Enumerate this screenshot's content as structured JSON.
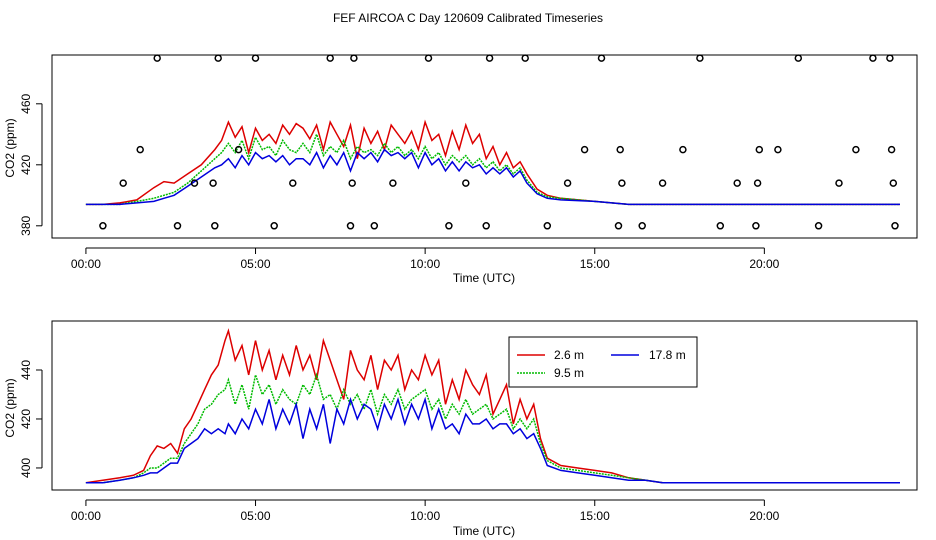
{
  "title": "FEF AIRCOA C  Day 120609  Calibrated Timeseries",
  "colors": {
    "s26": "#dd0000",
    "s95": "#00bb00",
    "s178": "#0000dd",
    "axis": "#000000"
  },
  "chart_data": [
    {
      "type": "line",
      "name": "top",
      "xlabel": "Time (UTC)",
      "ylabel": "CO2 (ppm)",
      "xlim": [
        -1,
        24.5
      ],
      "ylim": [
        372,
        492
      ],
      "xticks": [
        0,
        5,
        10,
        15,
        20
      ],
      "xtick_labels": [
        "00:00",
        "05:00",
        "10:00",
        "15:00",
        "20:00"
      ],
      "yticks": [
        380,
        420,
        460
      ],
      "ytick_labels": [
        "380",
        "420",
        "460"
      ],
      "series": [
        {
          "name": "2.6 m",
          "color": "#dd0000",
          "x": [
            0,
            0.5,
            1,
            1.5,
            2,
            2.3,
            2.6,
            3,
            3.4,
            3.8,
            4,
            4.2,
            4.4,
            4.6,
            4.8,
            5,
            5.2,
            5.4,
            5.6,
            5.8,
            6,
            6.2,
            6.4,
            6.6,
            6.8,
            7,
            7.2,
            7.4,
            7.6,
            7.8,
            8,
            8.2,
            8.4,
            8.6,
            8.8,
            9,
            9.2,
            9.4,
            9.6,
            9.8,
            10,
            10.2,
            10.4,
            10.6,
            10.8,
            11,
            11.2,
            11.4,
            11.6,
            11.8,
            12,
            12.2,
            12.4,
            12.6,
            12.8,
            13,
            13.3,
            13.6,
            14,
            15,
            16,
            17,
            18,
            19,
            20,
            21,
            22,
            23,
            24
          ],
          "y": [
            394,
            394,
            395,
            397,
            405,
            409,
            408,
            414,
            420,
            430,
            436,
            448,
            438,
            445,
            428,
            444,
            436,
            440,
            434,
            446,
            440,
            447,
            444,
            437,
            446,
            430,
            448,
            440,
            432,
            446,
            424,
            444,
            434,
            442,
            430,
            446,
            440,
            434,
            442,
            430,
            448,
            436,
            440,
            426,
            442,
            430,
            446,
            434,
            440,
            424,
            432,
            420,
            428,
            418,
            422,
            414,
            404,
            400,
            398,
            396,
            394,
            394,
            394,
            394,
            394,
            394,
            394,
            394,
            394
          ]
        },
        {
          "name": "9.5 m",
          "color": "#00bb00",
          "x": [
            0,
            0.5,
            1,
            1.5,
            2,
            2.3,
            2.6,
            3,
            3.4,
            3.8,
            4,
            4.2,
            4.4,
            4.6,
            4.8,
            5,
            5.2,
            5.4,
            5.6,
            5.8,
            6,
            6.2,
            6.4,
            6.6,
            6.8,
            7,
            7.2,
            7.4,
            7.6,
            7.8,
            8,
            8.2,
            8.4,
            8.6,
            8.8,
            9,
            9.2,
            9.4,
            9.6,
            9.8,
            10,
            10.2,
            10.4,
            10.6,
            10.8,
            11,
            11.2,
            11.4,
            11.6,
            11.8,
            12,
            12.2,
            12.4,
            12.6,
            12.8,
            13,
            13.3,
            13.6,
            14,
            15,
            16,
            17,
            18,
            19,
            20,
            21,
            22,
            23,
            24
          ],
          "y": [
            394,
            394,
            394,
            396,
            398,
            400,
            402,
            408,
            416,
            424,
            428,
            434,
            428,
            436,
            424,
            438,
            430,
            432,
            426,
            436,
            430,
            428,
            434,
            428,
            440,
            426,
            432,
            428,
            436,
            424,
            432,
            428,
            430,
            426,
            434,
            428,
            432,
            426,
            430,
            424,
            432,
            424,
            428,
            420,
            426,
            422,
            426,
            420,
            424,
            418,
            422,
            416,
            420,
            414,
            418,
            410,
            402,
            399,
            398,
            396,
            394,
            394,
            394,
            394,
            394,
            394,
            394,
            394,
            394
          ]
        },
        {
          "name": "17.8 m",
          "color": "#0000dd",
          "x": [
            0,
            0.5,
            1,
            1.5,
            2,
            2.3,
            2.6,
            3,
            3.4,
            3.8,
            4,
            4.2,
            4.4,
            4.6,
            4.8,
            5,
            5.2,
            5.4,
            5.6,
            5.8,
            6,
            6.2,
            6.4,
            6.6,
            6.8,
            7,
            7.2,
            7.4,
            7.6,
            7.8,
            8,
            8.2,
            8.4,
            8.6,
            8.8,
            9,
            9.2,
            9.4,
            9.6,
            9.8,
            10,
            10.2,
            10.4,
            10.6,
            10.8,
            11,
            11.2,
            11.4,
            11.6,
            11.8,
            12,
            12.2,
            12.4,
            12.6,
            12.8,
            13,
            13.3,
            13.6,
            14,
            15,
            16,
            17,
            18,
            19,
            20,
            21,
            22,
            23,
            24
          ],
          "y": [
            394,
            394,
            394,
            395,
            396,
            398,
            400,
            406,
            412,
            418,
            420,
            424,
            418,
            426,
            420,
            428,
            424,
            426,
            422,
            426,
            420,
            424,
            424,
            420,
            428,
            418,
            426,
            420,
            428,
            416,
            428,
            424,
            428,
            422,
            430,
            426,
            428,
            424,
            428,
            418,
            428,
            420,
            424,
            416,
            422,
            416,
            422,
            418,
            420,
            414,
            418,
            414,
            418,
            412,
            416,
            408,
            401,
            398,
            397,
            396,
            394,
            394,
            394,
            394,
            394,
            394,
            394,
            394,
            394
          ]
        }
      ],
      "reference_points": {
        "x": [
          0.5,
          1.1,
          1.6,
          2.1,
          2.7,
          3.2,
          3.75,
          3.8,
          3.9,
          4.5,
          5.0,
          5.55,
          6.1,
          7.2,
          7.8,
          7.85,
          7.9,
          8.5,
          9.05,
          10.1,
          10.7,
          11.2,
          11.8,
          11.9,
          12.95,
          13.6,
          14.2,
          14.7,
          15.2,
          15.7,
          15.75,
          15.8,
          16.4,
          17.0,
          17.6,
          18.1,
          18.7,
          19.2,
          19.75,
          19.8,
          19.85,
          20.4,
          21.0,
          21.6,
          22.2,
          22.7,
          23.2,
          23.7,
          23.75,
          23.8,
          23.85
        ],
        "y": [
          380,
          408,
          430,
          490,
          380,
          408,
          408,
          380,
          490,
          430,
          490,
          380,
          408,
          490,
          380,
          408,
          490,
          380,
          408,
          490,
          380,
          408,
          380,
          490,
          490,
          380,
          408,
          430,
          490,
          380,
          430,
          408,
          380,
          408,
          430,
          490,
          380,
          408,
          380,
          408,
          430,
          430,
          490,
          380,
          408,
          430,
          490,
          490,
          430,
          408,
          380
        ]
      }
    },
    {
      "type": "line",
      "name": "bottom",
      "xlabel": "Time (UTC)",
      "ylabel": "CO2 (ppm)",
      "xlim": [
        -1,
        24.5
      ],
      "ylim": [
        391,
        460
      ],
      "xticks": [
        0,
        5,
        10,
        15,
        20
      ],
      "xtick_labels": [
        "00:00",
        "05:00",
        "10:00",
        "15:00",
        "20:00"
      ],
      "yticks": [
        400,
        420,
        440
      ],
      "ytick_labels": [
        "400",
        "420",
        "440"
      ],
      "legend": {
        "placement": "top-right",
        "entries": [
          "2.6 m",
          "17.8 m",
          "9.5 m"
        ]
      },
      "series": [
        {
          "name": "2.6 m",
          "color": "#dd0000",
          "x": [
            0,
            0.5,
            1,
            1.4,
            1.7,
            1.9,
            2.1,
            2.3,
            2.5,
            2.7,
            2.9,
            3.1,
            3.3,
            3.5,
            3.7,
            3.9,
            4.1,
            4.2,
            4.4,
            4.6,
            4.8,
            5.0,
            5.2,
            5.4,
            5.6,
            5.8,
            6.0,
            6.2,
            6.4,
            6.6,
            6.8,
            7.0,
            7.2,
            7.4,
            7.6,
            7.8,
            8.0,
            8.2,
            8.4,
            8.6,
            8.8,
            9.0,
            9.2,
            9.4,
            9.6,
            9.8,
            10.0,
            10.2,
            10.4,
            10.6,
            10.8,
            11.0,
            11.2,
            11.4,
            11.6,
            11.8,
            12.0,
            12.2,
            12.4,
            12.6,
            12.8,
            13.0,
            13.2,
            13.4,
            13.6,
            14.0,
            14.5,
            15.0,
            15.5,
            16.0,
            16.5,
            17.0,
            18.0,
            19.0,
            20.0,
            21.0,
            22.0,
            23.0,
            24.0
          ],
          "y": [
            394,
            395,
            396,
            397,
            399,
            405,
            409,
            408,
            410,
            406,
            416,
            420,
            426,
            432,
            438,
            442,
            452,
            456,
            444,
            450,
            438,
            452,
            440,
            448,
            436,
            446,
            438,
            450,
            440,
            446,
            436,
            452,
            444,
            436,
            428,
            448,
            440,
            436,
            446,
            432,
            444,
            440,
            446,
            432,
            440,
            436,
            446,
            438,
            444,
            426,
            436,
            428,
            440,
            434,
            430,
            438,
            422,
            428,
            434,
            418,
            428,
            420,
            426,
            412,
            404,
            401,
            400,
            399,
            398,
            396,
            395,
            394,
            394,
            394,
            394,
            394,
            394,
            394,
            394
          ]
        },
        {
          "name": "9.5 m",
          "color": "#00bb00",
          "x": [
            0,
            0.5,
            1,
            1.4,
            1.7,
            1.9,
            2.1,
            2.3,
            2.5,
            2.7,
            2.9,
            3.1,
            3.3,
            3.5,
            3.7,
            3.9,
            4.1,
            4.2,
            4.4,
            4.6,
            4.8,
            5.0,
            5.2,
            5.4,
            5.6,
            5.8,
            6.0,
            6.2,
            6.4,
            6.6,
            6.8,
            7.0,
            7.2,
            7.4,
            7.6,
            7.8,
            8.0,
            8.2,
            8.4,
            8.6,
            8.8,
            9.0,
            9.2,
            9.4,
            9.6,
            9.8,
            10.0,
            10.2,
            10.4,
            10.6,
            10.8,
            11.0,
            11.2,
            11.4,
            11.6,
            11.8,
            12.0,
            12.2,
            12.4,
            12.6,
            12.8,
            13.0,
            13.2,
            13.4,
            13.6,
            14.0,
            14.5,
            15.0,
            15.5,
            16.0,
            16.5,
            17.0,
            18.0,
            19.0,
            20.0,
            21.0,
            22.0,
            23.0,
            24.0
          ],
          "y": [
            394,
            394,
            395,
            396,
            398,
            400,
            400,
            402,
            404,
            404,
            410,
            414,
            418,
            424,
            426,
            430,
            432,
            436,
            426,
            434,
            424,
            438,
            430,
            434,
            426,
            432,
            428,
            426,
            434,
            430,
            438,
            428,
            430,
            424,
            432,
            426,
            430,
            424,
            432,
            422,
            430,
            426,
            432,
            424,
            428,
            430,
            432,
            424,
            428,
            420,
            426,
            422,
            428,
            422,
            424,
            426,
            420,
            422,
            424,
            416,
            420,
            416,
            420,
            410,
            403,
            400,
            399,
            398,
            397,
            396,
            395,
            394,
            394,
            394,
            394,
            394,
            394,
            394,
            394
          ]
        },
        {
          "name": "17.8 m",
          "color": "#0000dd",
          "x": [
            0,
            0.5,
            1,
            1.4,
            1.7,
            1.9,
            2.1,
            2.3,
            2.5,
            2.7,
            2.9,
            3.1,
            3.3,
            3.5,
            3.7,
            3.9,
            4.1,
            4.2,
            4.4,
            4.6,
            4.8,
            5.0,
            5.2,
            5.4,
            5.6,
            5.8,
            6.0,
            6.2,
            6.4,
            6.6,
            6.8,
            7.0,
            7.2,
            7.4,
            7.6,
            7.8,
            8.0,
            8.2,
            8.4,
            8.6,
            8.8,
            9.0,
            9.2,
            9.4,
            9.6,
            9.8,
            10.0,
            10.2,
            10.4,
            10.6,
            10.8,
            11.0,
            11.2,
            11.4,
            11.6,
            11.8,
            12.0,
            12.2,
            12.4,
            12.6,
            12.8,
            13.0,
            13.2,
            13.4,
            13.6,
            14.0,
            14.5,
            15.0,
            15.5,
            16.0,
            16.5,
            17.0,
            18.0,
            19.0,
            20.0,
            21.0,
            22.0,
            23.0,
            24.0
          ],
          "y": [
            394,
            394,
            395,
            396,
            397,
            398,
            398,
            400,
            402,
            402,
            408,
            410,
            412,
            416,
            414,
            416,
            414,
            418,
            414,
            420,
            416,
            424,
            418,
            428,
            416,
            424,
            418,
            426,
            412,
            424,
            416,
            426,
            410,
            424,
            418,
            428,
            420,
            426,
            424,
            416,
            426,
            420,
            428,
            418,
            426,
            420,
            428,
            416,
            424,
            416,
            418,
            414,
            422,
            418,
            418,
            420,
            416,
            418,
            418,
            414,
            416,
            412,
            414,
            408,
            401,
            399,
            398,
            397,
            396,
            395,
            395,
            394,
            394,
            394,
            394,
            394,
            394,
            394,
            394
          ]
        }
      ]
    }
  ]
}
